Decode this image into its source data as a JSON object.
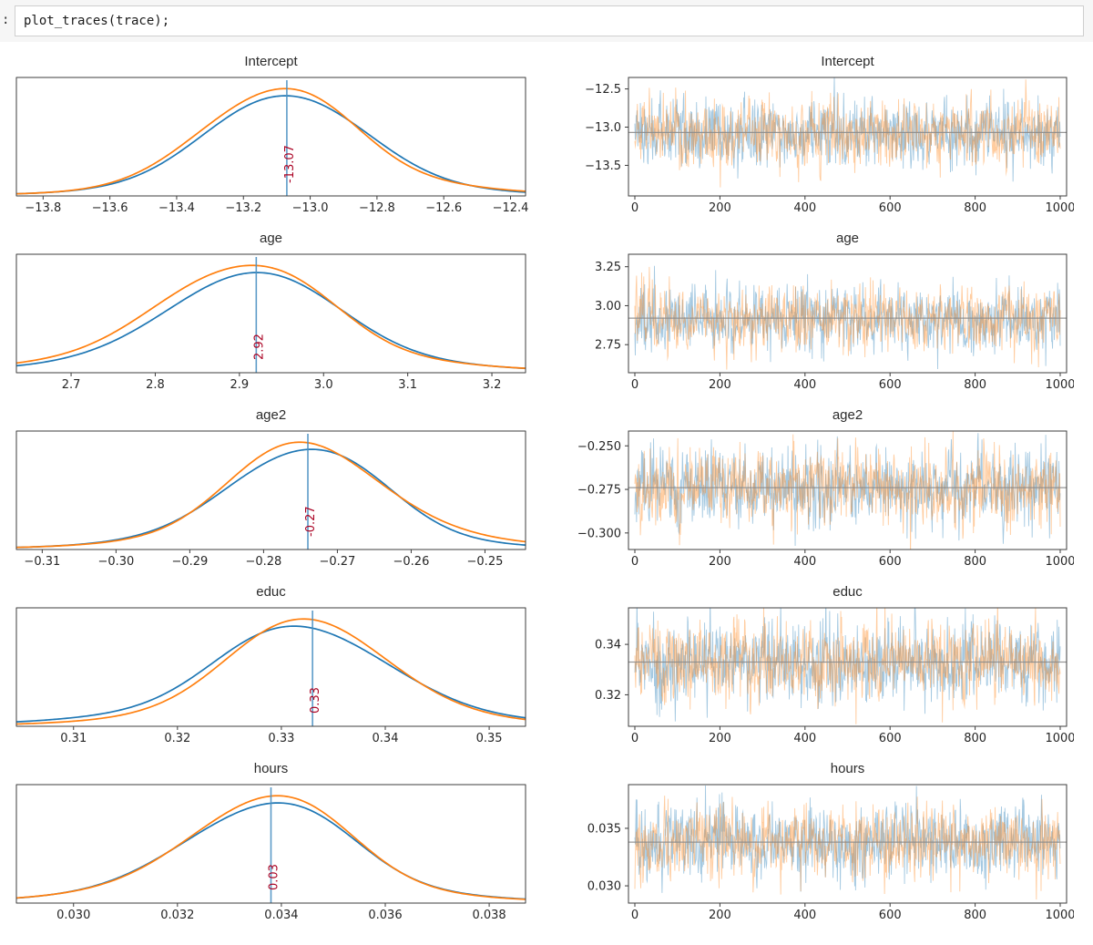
{
  "cell": {
    "prompt": ":",
    "code": "plot_traces(trace);"
  },
  "colors": {
    "chain_0": "#1f77b4",
    "chain_1": "#ff7f0e",
    "mean_vline": "#4a90c2",
    "mean_hline": "#8c8c8c",
    "annotation": "#AA0022"
  },
  "chart_data": [
    {
      "type": "kde",
      "panel": "posterior-density",
      "title": "Intercept",
      "chains": 2,
      "xlim": [
        -13.88,
        -12.355
      ],
      "xticks": [
        -13.8,
        -13.6,
        -13.4,
        -13.2,
        -13.0,
        -12.8,
        -12.6,
        -12.4
      ],
      "xticklabels": [
        "−13.8",
        "−13.6",
        "−13.4",
        "−13.2",
        "−13.0",
        "−12.8",
        "−12.6",
        "−12.4"
      ],
      "mean": -13.07,
      "sd": 0.225,
      "annotation_text": "-13.07"
    },
    {
      "type": "line",
      "panel": "sample-trace",
      "title": "Intercept",
      "chains": 2,
      "x_range": [
        0,
        1000
      ],
      "xticks": [
        0,
        200,
        400,
        600,
        800,
        1000
      ],
      "xticklabels": [
        "0",
        "200",
        "400",
        "600",
        "800",
        "1000"
      ],
      "ylim": [
        -13.9,
        -12.35
      ],
      "yticks": [
        -12.5,
        -13.0,
        -13.5
      ],
      "yticklabels": [
        "−12.5",
        "−13.0",
        "−13.5"
      ],
      "mean": -13.07,
      "sd": 0.22
    },
    {
      "type": "kde",
      "panel": "posterior-density",
      "title": "age",
      "chains": 2,
      "xlim": [
        2.635,
        3.24
      ],
      "xticks": [
        2.7,
        2.8,
        2.9,
        3.0,
        3.1,
        3.2
      ],
      "xticklabels": [
        "2.7",
        "2.8",
        "2.9",
        "3.0",
        "3.1",
        "3.2"
      ],
      "mean": 2.92,
      "sd": 0.095,
      "annotation_text": "2.92"
    },
    {
      "type": "line",
      "panel": "sample-trace",
      "title": "age",
      "chains": 2,
      "x_range": [
        0,
        1000
      ],
      "xticks": [
        0,
        200,
        400,
        600,
        800,
        1000
      ],
      "xticklabels": [
        "0",
        "200",
        "400",
        "600",
        "800",
        "1000"
      ],
      "ylim": [
        2.57,
        3.33
      ],
      "yticks": [
        3.25,
        3.0,
        2.75
      ],
      "yticklabels": [
        "3.25",
        "3.00",
        "2.75"
      ],
      "mean": 2.92,
      "sd": 0.1
    },
    {
      "type": "kde",
      "panel": "posterior-density",
      "title": "age2",
      "chains": 2,
      "xlim": [
        -0.3135,
        -0.2445
      ],
      "xticks": [
        -0.31,
        -0.3,
        -0.29,
        -0.28,
        -0.27,
        -0.26,
        -0.25
      ],
      "xticklabels": [
        "−0.31",
        "−0.30",
        "−0.29",
        "−0.28",
        "−0.27",
        "−0.26",
        "−0.25"
      ],
      "mean": -0.274,
      "sd": 0.0105,
      "annotation_text": "-0.27"
    },
    {
      "type": "line",
      "panel": "sample-trace",
      "title": "age2",
      "chains": 2,
      "x_range": [
        0,
        1000
      ],
      "xticks": [
        0,
        200,
        400,
        600,
        800,
        1000
      ],
      "xticklabels": [
        "0",
        "200",
        "400",
        "600",
        "800",
        "1000"
      ],
      "ylim": [
        -0.3095,
        -0.2415
      ],
      "yticks": [
        -0.25,
        -0.275,
        -0.3
      ],
      "yticklabels": [
        "−0.250",
        "−0.275",
        "−0.300"
      ],
      "mean": -0.274,
      "sd": 0.0108
    },
    {
      "type": "kde",
      "panel": "posterior-density",
      "title": "educ",
      "chains": 2,
      "xlim": [
        0.3045,
        0.3535
      ],
      "xticks": [
        0.31,
        0.32,
        0.33,
        0.34,
        0.35
      ],
      "xticklabels": [
        "0.31",
        "0.32",
        "0.33",
        "0.34",
        "0.35"
      ],
      "mean": 0.333,
      "sd": 0.0075,
      "annotation_text": "0.33"
    },
    {
      "type": "line",
      "panel": "sample-trace",
      "title": "educ",
      "chains": 2,
      "x_range": [
        0,
        1000
      ],
      "xticks": [
        0,
        200,
        400,
        600,
        800,
        1000
      ],
      "xticklabels": [
        "0",
        "200",
        "400",
        "600",
        "800",
        "1000"
      ],
      "ylim": [
        0.3075,
        0.3545
      ],
      "yticks": [
        0.34,
        0.32
      ],
      "yticklabels": [
        "0.34",
        "0.32"
      ],
      "mean": 0.333,
      "sd": 0.0078
    },
    {
      "type": "kde",
      "panel": "posterior-density",
      "title": "hours",
      "chains": 2,
      "xlim": [
        0.0289,
        0.0387
      ],
      "xticks": [
        0.03,
        0.032,
        0.034,
        0.036,
        0.038
      ],
      "xticklabels": [
        "0.030",
        "0.032",
        "0.034",
        "0.036",
        "0.038"
      ],
      "mean": 0.0338,
      "sd": 0.0015,
      "annotation_text": "0.03"
    },
    {
      "type": "line",
      "panel": "sample-trace",
      "title": "hours",
      "chains": 2,
      "x_range": [
        0,
        1000
      ],
      "xticks": [
        0,
        200,
        400,
        600,
        800,
        1000
      ],
      "xticklabels": [
        "0",
        "200",
        "400",
        "600",
        "800",
        "1000"
      ],
      "ylim": [
        0.0285,
        0.0388
      ],
      "yticks": [
        0.035,
        0.03
      ],
      "yticklabels": [
        "0.035",
        "0.030"
      ],
      "mean": 0.0338,
      "sd": 0.00155
    }
  ]
}
